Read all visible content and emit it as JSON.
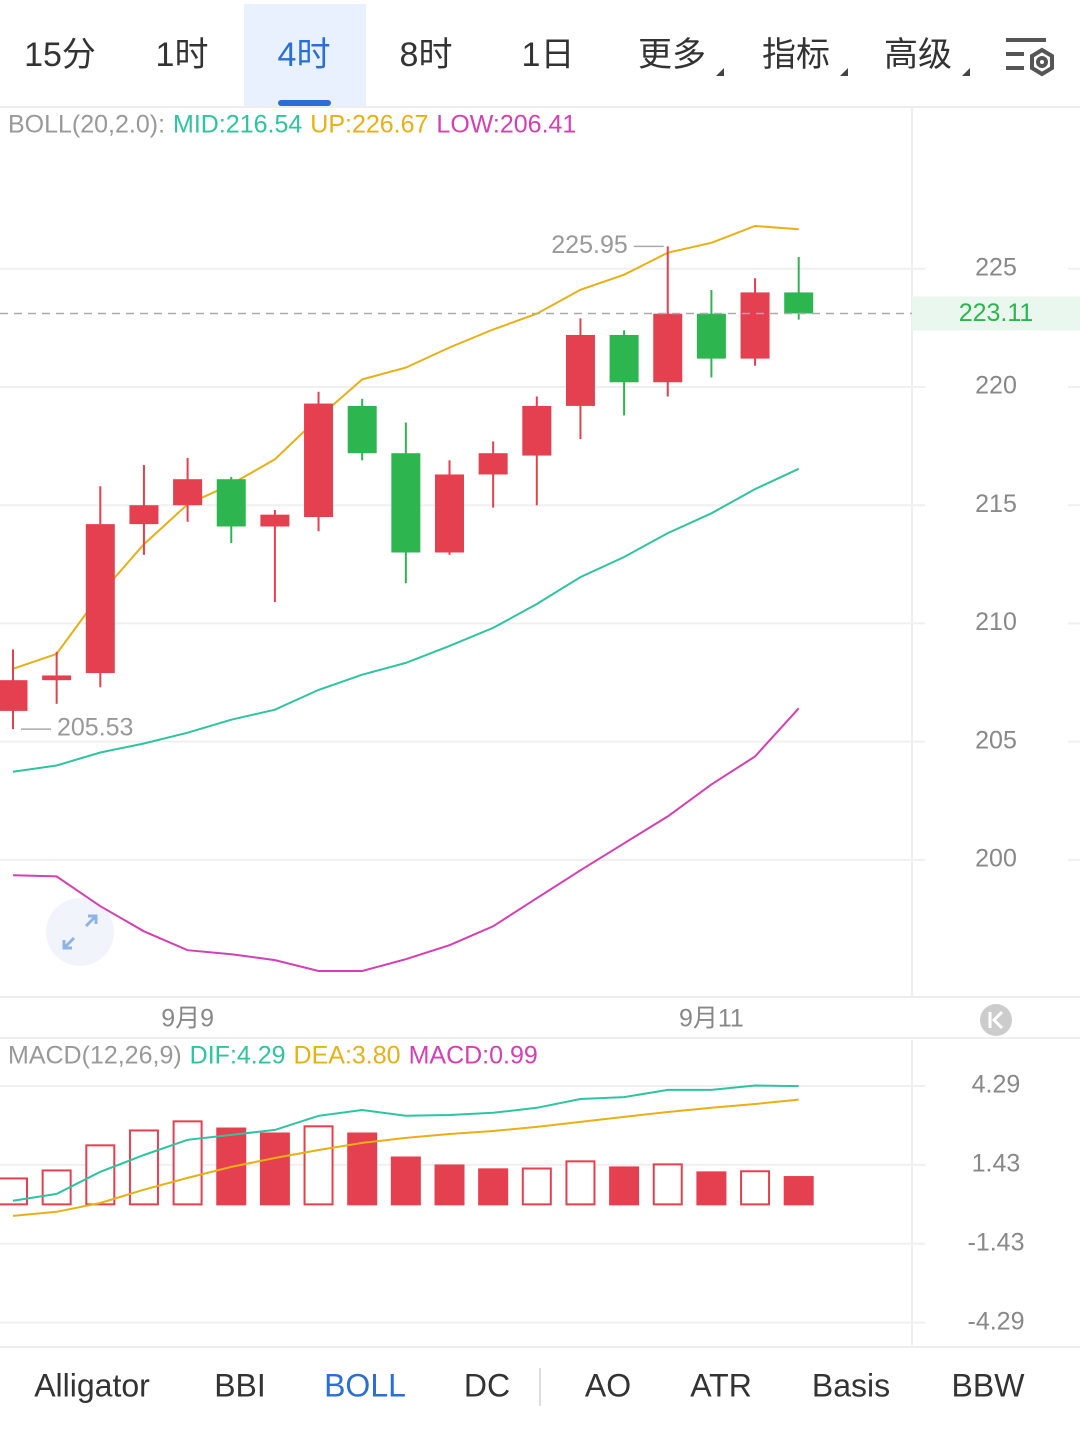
{
  "tabs": {
    "items": [
      "15分",
      "1时",
      "4时",
      "8时",
      "1日",
      "更多",
      "指标",
      "高级"
    ],
    "selected": 2
  },
  "chart_data": [
    {
      "type": "candlestick",
      "indicator_label": "BOLL(20,2.0):",
      "legend": [
        {
          "text": "MID:216.54",
          "color": "#2ec4a0"
        },
        {
          "text": "UP:226.67",
          "color": "#e8b014"
        },
        {
          "text": "LOW:206.41",
          "color": "#d63fb4"
        }
      ],
      "categories": [
        null,
        null,
        null,
        null,
        "9月9",
        null,
        null,
        null,
        null,
        null,
        null,
        null,
        null,
        null,
        null,
        null,
        "9月11",
        null,
        null
      ],
      "open": [
        206.3,
        207.6,
        207.9,
        214.2,
        215.0,
        216.1,
        214.1,
        214.5,
        219.2,
        217.2,
        213.0,
        216.3,
        217.1,
        219.2,
        222.2,
        220.2,
        223.1,
        221.2,
        224.0
      ],
      "high": [
        208.9,
        208.8,
        215.8,
        216.7,
        217.0,
        216.2,
        214.8,
        219.8,
        219.5,
        218.5,
        216.9,
        217.7,
        219.6,
        222.9,
        222.4,
        225.95,
        224.1,
        224.6,
        225.5
      ],
      "low": [
        205.53,
        206.6,
        207.3,
        212.9,
        214.3,
        213.4,
        210.9,
        213.9,
        216.9,
        211.7,
        212.9,
        214.9,
        215.0,
        217.8,
        218.8,
        219.6,
        220.4,
        220.9,
        222.85
      ],
      "close": [
        207.6,
        207.8,
        214.2,
        215.0,
        216.1,
        214.1,
        214.6,
        219.3,
        217.2,
        213.0,
        216.3,
        217.2,
        219.2,
        222.2,
        220.2,
        223.1,
        221.2,
        224.0,
        223.11
      ],
      "up_color": "#e5404f",
      "down_color": "#2db550",
      "series": [
        {
          "name": "UP",
          "color": "#e8b014",
          "values": [
            208.08,
            208.71,
            211.24,
            213.35,
            215.04,
            215.89,
            216.94,
            218.71,
            220.32,
            220.82,
            221.67,
            222.43,
            223.1,
            224.11,
            224.75,
            225.68,
            226.1,
            226.81,
            226.67
          ]
        },
        {
          "name": "MID",
          "color": "#2ec4a0",
          "values": [
            203.73,
            203.99,
            204.54,
            204.92,
            205.38,
            205.93,
            206.35,
            207.19,
            207.83,
            208.33,
            209.05,
            209.81,
            210.82,
            211.96,
            212.81,
            213.82,
            214.66,
            215.68,
            216.54
          ]
        },
        {
          "name": "LOW",
          "color": "#d63fb4",
          "values": [
            199.35,
            199.3,
            198.04,
            196.98,
            196.18,
            196.01,
            195.76,
            195.3,
            195.3,
            195.8,
            196.39,
            197.19,
            198.38,
            199.56,
            200.7,
            201.84,
            203.19,
            204.37,
            206.41
          ]
        }
      ],
      "current_price": 223.11,
      "ylim": [
        194.2,
        231.8
      ],
      "yticks": [
        200,
        205,
        210,
        215,
        220,
        225
      ],
      "grid": true
    },
    {
      "type": "macd",
      "indicator_label": "MACD(12,26,9)",
      "legend": [
        {
          "text": "DIF:4.29",
          "color": "#2ec4a0"
        },
        {
          "text": "DEA:3.80",
          "color": "#e8b014"
        },
        {
          "text": "MACD:0.99",
          "color": "#d63fb4"
        }
      ],
      "values": [
        0.94,
        1.23,
        2.14,
        2.68,
        3.01,
        2.75,
        2.57,
        2.83,
        2.57,
        1.7,
        1.41,
        1.27,
        1.3,
        1.56,
        1.34,
        1.45,
        1.16,
        1.2,
        0.99
      ],
      "color": "#e5404f",
      "series": [
        {
          "name": "DIF",
          "color": "#2ec4a0",
          "values": [
            0.13,
            0.38,
            1.18,
            1.79,
            2.34,
            2.52,
            2.7,
            3.21,
            3.42,
            3.21,
            3.24,
            3.32,
            3.5,
            3.82,
            3.89,
            4.15,
            4.15,
            4.31,
            4.29
          ]
        },
        {
          "name": "DEA",
          "color": "#e8b014",
          "values": [
            -0.42,
            -0.27,
            0.05,
            0.53,
            0.96,
            1.36,
            1.68,
            1.97,
            2.23,
            2.41,
            2.55,
            2.66,
            2.81,
            2.99,
            3.17,
            3.35,
            3.5,
            3.64,
            3.8
          ]
        }
      ],
      "ylim": [
        -5.1,
        5.96
      ],
      "yticks": [
        -4.29,
        -1.43,
        1.43,
        4.29
      ],
      "grid": true
    }
  ],
  "indicator_tabs": {
    "items": [
      "Alligator",
      "BBI",
      "BOLL",
      "DC",
      "AO",
      "ATR",
      "Basis",
      "BBW"
    ],
    "selected": 2
  }
}
